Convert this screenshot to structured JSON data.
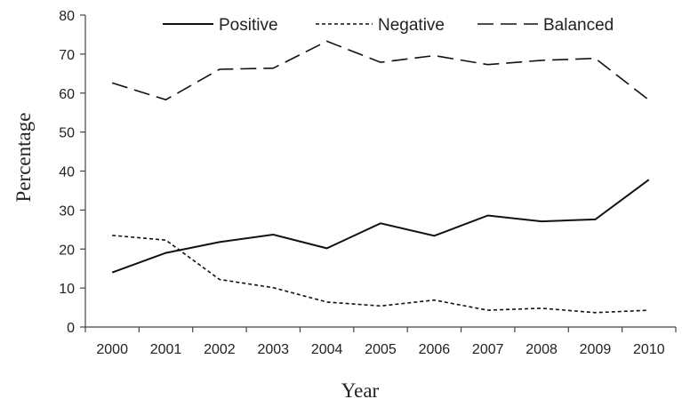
{
  "chart_data": {
    "type": "line",
    "xlabel": "Year",
    "ylabel": "Percentage",
    "ylim": [
      0,
      80
    ],
    "yticks": [
      0,
      10,
      20,
      30,
      40,
      50,
      60,
      70,
      80
    ],
    "categories": [
      "2000",
      "2001",
      "2002",
      "2003",
      "2004",
      "2005",
      "2006",
      "2007",
      "2008",
      "2009",
      "2010"
    ],
    "grid": false,
    "legend": "top",
    "series": [
      {
        "name": "Positive",
        "style": "solid",
        "color": "#111111",
        "values": [
          14,
          19,
          21.8,
          23.7,
          20.2,
          26.6,
          23.4,
          28.6,
          27.1,
          27.6,
          37.8
        ]
      },
      {
        "name": "Negative",
        "style": "dotted",
        "color": "#111111",
        "values": [
          23.5,
          22.3,
          12.2,
          10.1,
          6.4,
          5.4,
          6.9,
          4.3,
          4.8,
          3.7,
          4.3
        ]
      },
      {
        "name": "Balanced",
        "style": "dashed",
        "color": "#111111",
        "values": [
          62.6,
          58.3,
          66.1,
          66.4,
          73.3,
          67.9,
          69.6,
          67.3,
          68.4,
          68.9,
          58.2
        ]
      }
    ]
  }
}
